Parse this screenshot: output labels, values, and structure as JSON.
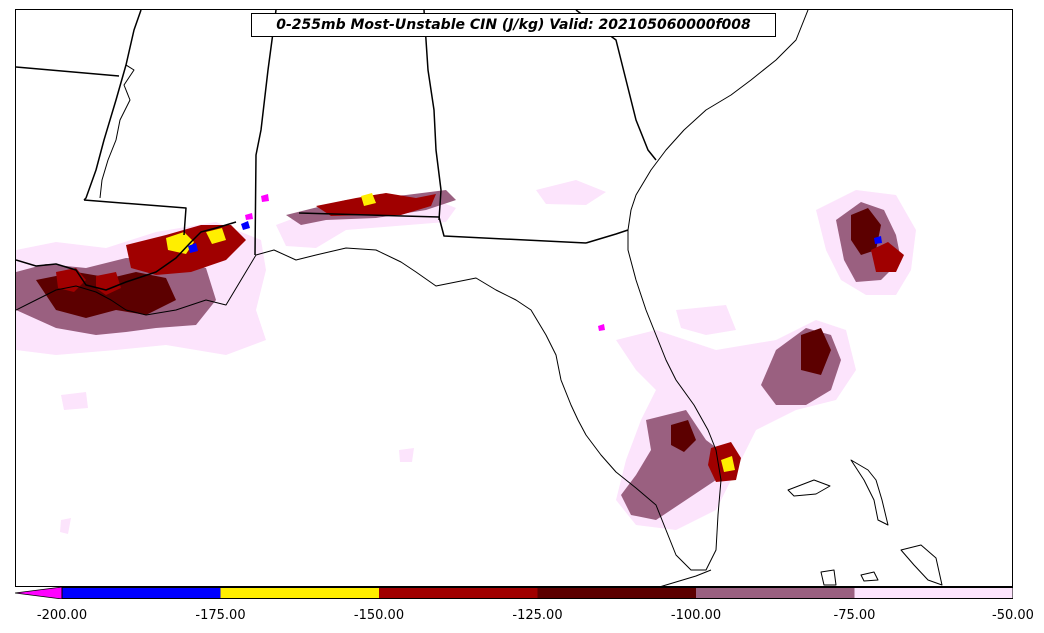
{
  "title": "0-255mb Most-Unstable CIN (J/kg) Valid: 202105060000f008",
  "colorbar": {
    "tick_labels": [
      "-200.00",
      "-175.00",
      "-150.00",
      "-125.00",
      "-100.00",
      "-75.00",
      "-50.00"
    ],
    "bins": [
      {
        "from": -175,
        "to": -200,
        "color": "#0000ff"
      },
      {
        "from": -175,
        "to": -150,
        "color": "#ffee00"
      },
      {
        "from": -150,
        "to": -125,
        "color": "#a00000"
      },
      {
        "from": -125,
        "to": -100,
        "color": "#5c0000"
      },
      {
        "from": -100,
        "to": -75,
        "color": "#9a6080"
      },
      {
        "from": -75,
        "to": -50,
        "color": "#fce4fc"
      }
    ],
    "under_color": "#ff00ff",
    "extend": "min"
  },
  "colors": {
    "lightest": "#fce4fc",
    "mauve": "#9a6080",
    "dark_red": "#5c0000",
    "red": "#a00000",
    "yellow": "#ffee00",
    "blue": "#0000ff",
    "magenta": "#ff00ff"
  }
}
